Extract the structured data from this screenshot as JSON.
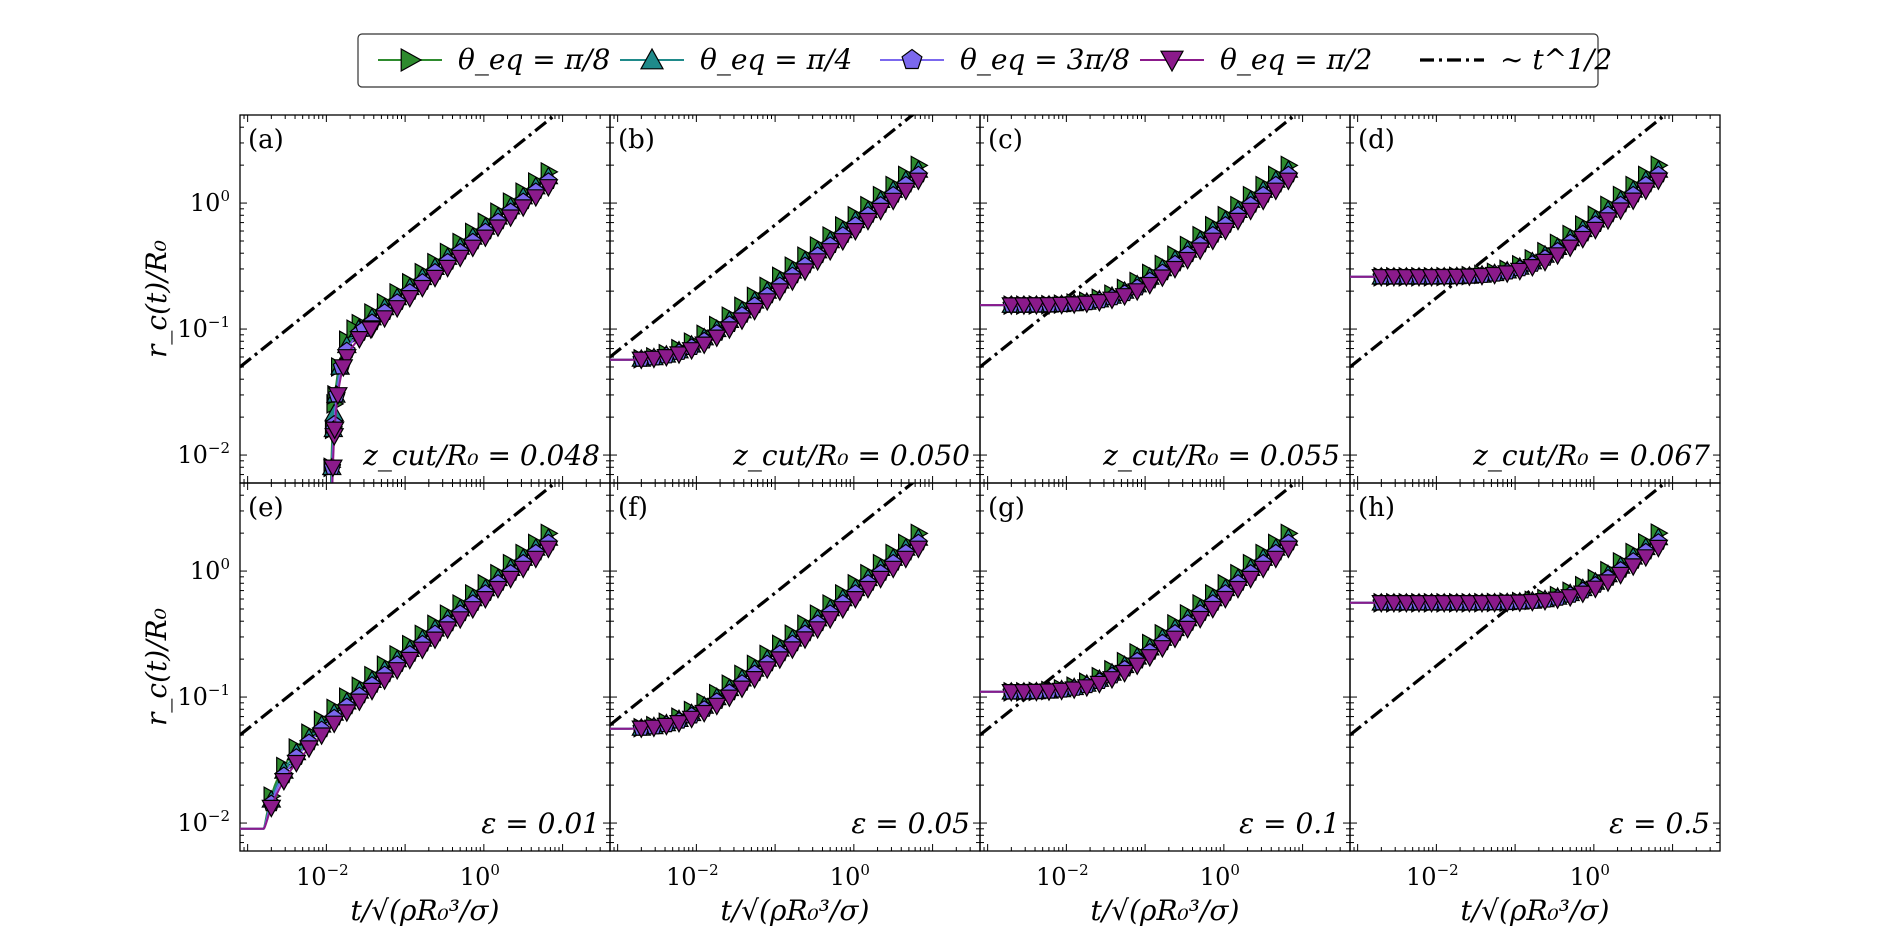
{
  "chart_data": {
    "type": "line",
    "layout": "2x4 grid of log-log panels",
    "x_scale": "log",
    "y_scale": "log",
    "xlim": [
      0.0008,
      40
    ],
    "ylim": [
      0.006,
      5
    ],
    "x_ticks": [
      {
        "value": 0.01,
        "base": "10",
        "exp": "−2"
      },
      {
        "value": 1,
        "base": "10",
        "exp": "0"
      }
    ],
    "y_ticks": [
      {
        "value": 0.01,
        "base": "10",
        "exp": "−2"
      },
      {
        "value": 0.1,
        "base": "10",
        "exp": "−1"
      },
      {
        "value": 1,
        "base": "10",
        "exp": "0"
      }
    ],
    "xlabel": "t/√(ρR₀³/σ)",
    "ylabel": "r_c(t)/R₀",
    "legend": {
      "placement": "top-center",
      "entries": [
        {
          "label": "θ_eq = π/8",
          "color": "#2e8b2e",
          "marker": "triangle-right"
        },
        {
          "label": "θ_eq = π/4",
          "color": "#1f8a8a",
          "marker": "triangle-up"
        },
        {
          "label": "θ_eq = 3π/8",
          "color": "#7b68ee",
          "marker": "pentagon"
        },
        {
          "label": "θ_eq = π/2",
          "color": "#8b1a8b",
          "marker": "triangle-down"
        },
        {
          "label": "∼ t^1/2",
          "color": "#000000",
          "marker": "dash-dot"
        }
      ]
    },
    "reference_line": {
      "label": "∼ t^1/2",
      "slope": 0.5,
      "style": "dash-dot"
    },
    "panels": [
      {
        "id": "(a)",
        "annotation": "z_cut/R₀ = 0.048",
        "r0": 0.0045,
        "t_onset": 0.011,
        "ref_y_at_xmin": 0.05
      },
      {
        "id": "(b)",
        "annotation": "z_cut/R₀ = 0.050",
        "r0": 0.057,
        "t_onset": 0.006,
        "ref_y_at_xmin": 0.06
      },
      {
        "id": "(c)",
        "annotation": "z_cut/R₀ = 0.055",
        "r0": 0.155,
        "t_onset": 0.014,
        "ref_y_at_xmin": 0.05
      },
      {
        "id": "(d)",
        "annotation": "z_cut/R₀ = 0.067",
        "r0": 0.26,
        "t_onset": 0.04,
        "ref_y_at_xmin": 0.05
      },
      {
        "id": "(e)",
        "annotation": "ε = 0.01",
        "r0": 0.009,
        "t_onset": 0.008,
        "ref_y_at_xmin": 0.05
      },
      {
        "id": "(f)",
        "annotation": "ε = 0.05",
        "r0": 0.056,
        "t_onset": 0.006,
        "ref_y_at_xmin": 0.06
      },
      {
        "id": "(g)",
        "annotation": "ε = 0.1",
        "r0": 0.11,
        "t_onset": 0.012,
        "ref_y_at_xmin": 0.05
      },
      {
        "id": "(h)",
        "annotation": "ε = 0.5",
        "r0": 0.56,
        "t_onset": 0.12,
        "ref_y_at_xmin": 0.05
      }
    ],
    "series": [
      {
        "name": "θ_eq = π/8",
        "color": "#2e8b2e",
        "marker": "triangle-right",
        "late_time_scale": 1.25
      },
      {
        "name": "θ_eq = π/4",
        "color": "#1f8a8a",
        "marker": "triangle-up",
        "late_time_scale": 1.15
      },
      {
        "name": "θ_eq = 3π/8",
        "color": "#7b68ee",
        "marker": "pentagon",
        "late_time_scale": 1.05
      },
      {
        "name": "θ_eq = π/2",
        "color": "#8b1a8b",
        "marker": "triangle-down",
        "late_time_scale": 0.95
      }
    ]
  }
}
